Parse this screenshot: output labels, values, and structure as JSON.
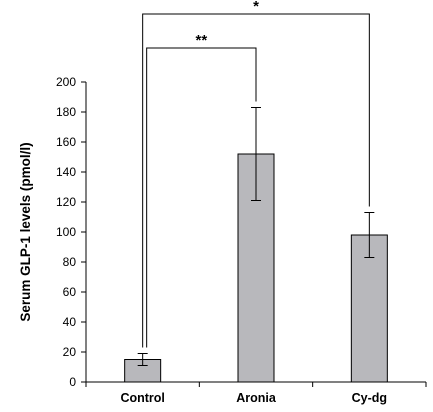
{
  "chart_data": {
    "type": "bar",
    "title": "",
    "xlabel": "",
    "ylabel": "Serum GLP-1 levels (pmol/l)",
    "ylim": [
      0,
      200
    ],
    "yticks": [
      0,
      20,
      40,
      60,
      80,
      100,
      120,
      140,
      160,
      180,
      200
    ],
    "categories": [
      "Control",
      "Aronia",
      "Cy-dg"
    ],
    "values": [
      15,
      152,
      98
    ],
    "errors": [
      4,
      31,
      15
    ],
    "bar_color": "#b8b8bc",
    "grid": false,
    "legend": "none",
    "significance": [
      {
        "from": "Control",
        "to": "Aronia",
        "label": "**"
      },
      {
        "from": "Control",
        "to": "Cy-dg",
        "label": "*"
      }
    ]
  }
}
